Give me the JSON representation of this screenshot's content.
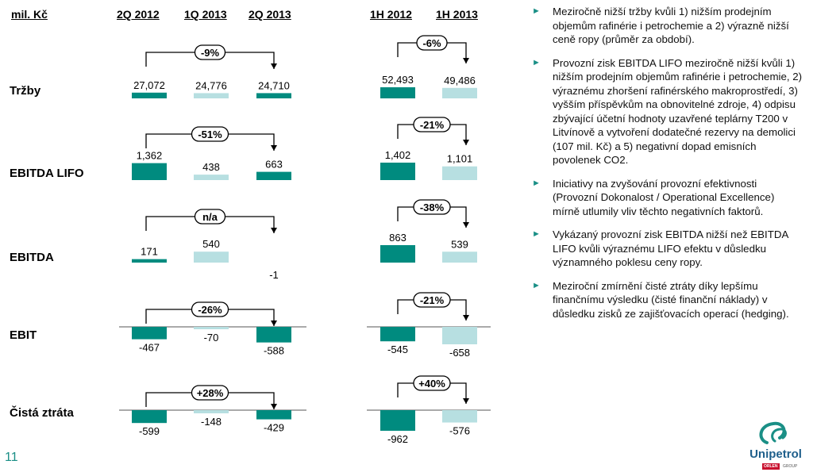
{
  "header": {
    "unit": "mil. Kč",
    "periods_q": [
      "2Q 2012",
      "1Q 2013",
      "2Q 2013"
    ],
    "periods_h": [
      "1H 2012",
      "1H 2013"
    ]
  },
  "colors": {
    "dark": "#008b7f",
    "light": "#b7dfe1",
    "text": "#000000"
  },
  "chart_data": {
    "type": "bar",
    "title": "",
    "categories_q": [
      "2Q 2012",
      "1Q 2013",
      "2Q 2013"
    ],
    "categories_h": [
      "1H 2012",
      "1H 2013"
    ],
    "metrics": [
      {
        "name": "Tržby",
        "q": [
          27072,
          24776,
          24710
        ],
        "q_labels": [
          "27,072",
          "24,776",
          "24,710"
        ],
        "q_change": "-9%",
        "h": [
          52493,
          49486
        ],
        "h_labels": [
          "52,493",
          "49,486"
        ],
        "h_change": "-6%"
      },
      {
        "name": "EBITDA LIFO",
        "q": [
          1362,
          438,
          663
        ],
        "q_labels": [
          "1,362",
          "438",
          "663"
        ],
        "q_change": "-51%",
        "h": [
          1402,
          1101
        ],
        "h_labels": [
          "1,402",
          "1,101"
        ],
        "h_change": "-21%"
      },
      {
        "name": "EBITDA",
        "q": [
          171,
          540,
          -1
        ],
        "q_labels": [
          "171",
          "540",
          "-1"
        ],
        "q_change": "n/a",
        "h": [
          863,
          539
        ],
        "h_labels": [
          "863",
          "539"
        ],
        "h_change": "-38%"
      },
      {
        "name": "EBIT",
        "q": [
          -467,
          -70,
          -588
        ],
        "q_labels": [
          "-467",
          "-70",
          "-588"
        ],
        "q_change": "-26%",
        "h": [
          -545,
          -658
        ],
        "h_labels": [
          "-545",
          "-658"
        ],
        "h_change": "-21%"
      },
      {
        "name": "Čistá ztráta",
        "q": [
          -599,
          -148,
          -429
        ],
        "q_labels": [
          "-599",
          "-148",
          "-429"
        ],
        "q_change": "+28%",
        "h": [
          -962,
          -576
        ],
        "h_labels": [
          "-962",
          "-576"
        ],
        "h_change": "+40%"
      }
    ]
  },
  "bullets": [
    "Meziročně nižší tržby kvůli 1) nižším prodejním objemům rafinérie i petrochemie a 2) výrazně nižší ceně ropy (průměr za období).",
    "Provozní zisk EBITDA LIFO meziročně nižší kvůli 1) nižším prodejním objemům rafinérie i petrochemie, 2) výraznému zhoršení rafinérského makroprostředí, 3) vyšším příspěvkům na obnovitelné zdroje, 4) odpisu zbývající účetní hodnoty uzavřené teplárny T200 v Litvínově a vytvoření dodatečné rezervy na demolici (107 mil. Kč) a 5) negativní dopad emisních povolenek CO2.",
    "Iniciativy na zvyšování provozní efektivnosti (Provozní Dokonalost / Operational Excellence) mírně utlumily vliv těchto negativních faktorů.",
    "Vykázaný provozní zisk EBITDA nižší než EBITDA LIFO kvůli výraznému LIFO efektu v důsledku významného poklesu ceny ropy.",
    "Meziroční zmírnění čisté ztráty díky lepšímu finančnímu výsledku (čisté finanční náklady) v důsledku zisků ze zajišťovacích operací (hedging)."
  ],
  "page_number": "11",
  "logo": {
    "name": "Unipetrol",
    "tag": "ORLEN",
    "tag2": "GROUP"
  }
}
